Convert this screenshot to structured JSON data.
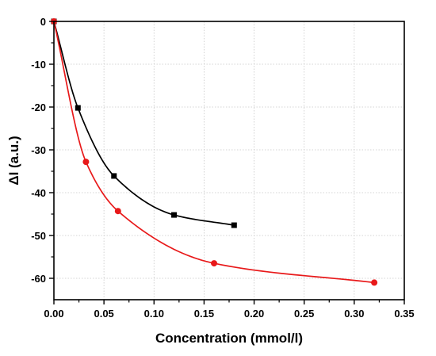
{
  "chart_data": {
    "type": "line",
    "title": "",
    "xlabel": "Concentration (mmol/l)",
    "ylabel": "ΔI (a.u.)",
    "xlim": [
      0,
      0.35
    ],
    "ylim": [
      -65,
      0
    ],
    "grid": true,
    "x_ticks": [
      "0.00",
      "0.05",
      "0.10",
      "0.15",
      "0.20",
      "0.25",
      "0.30",
      "0.35"
    ],
    "y_ticks": [
      "0",
      "-10",
      "-20",
      "-30",
      "-40",
      "-50",
      "-60"
    ],
    "series": [
      {
        "marker": "square",
        "color": "#000000",
        "x": [
          0.0,
          0.024,
          0.06,
          0.12,
          0.18
        ],
        "y": [
          0,
          -20.2,
          -36.1,
          -45.2,
          -47.6
        ]
      },
      {
        "marker": "circle",
        "color": "#e8191a",
        "x": [
          0.0,
          0.032,
          0.064,
          0.16,
          0.32
        ],
        "y": [
          0,
          -32.8,
          -44.3,
          -56.5,
          -61.0
        ]
      }
    ]
  }
}
